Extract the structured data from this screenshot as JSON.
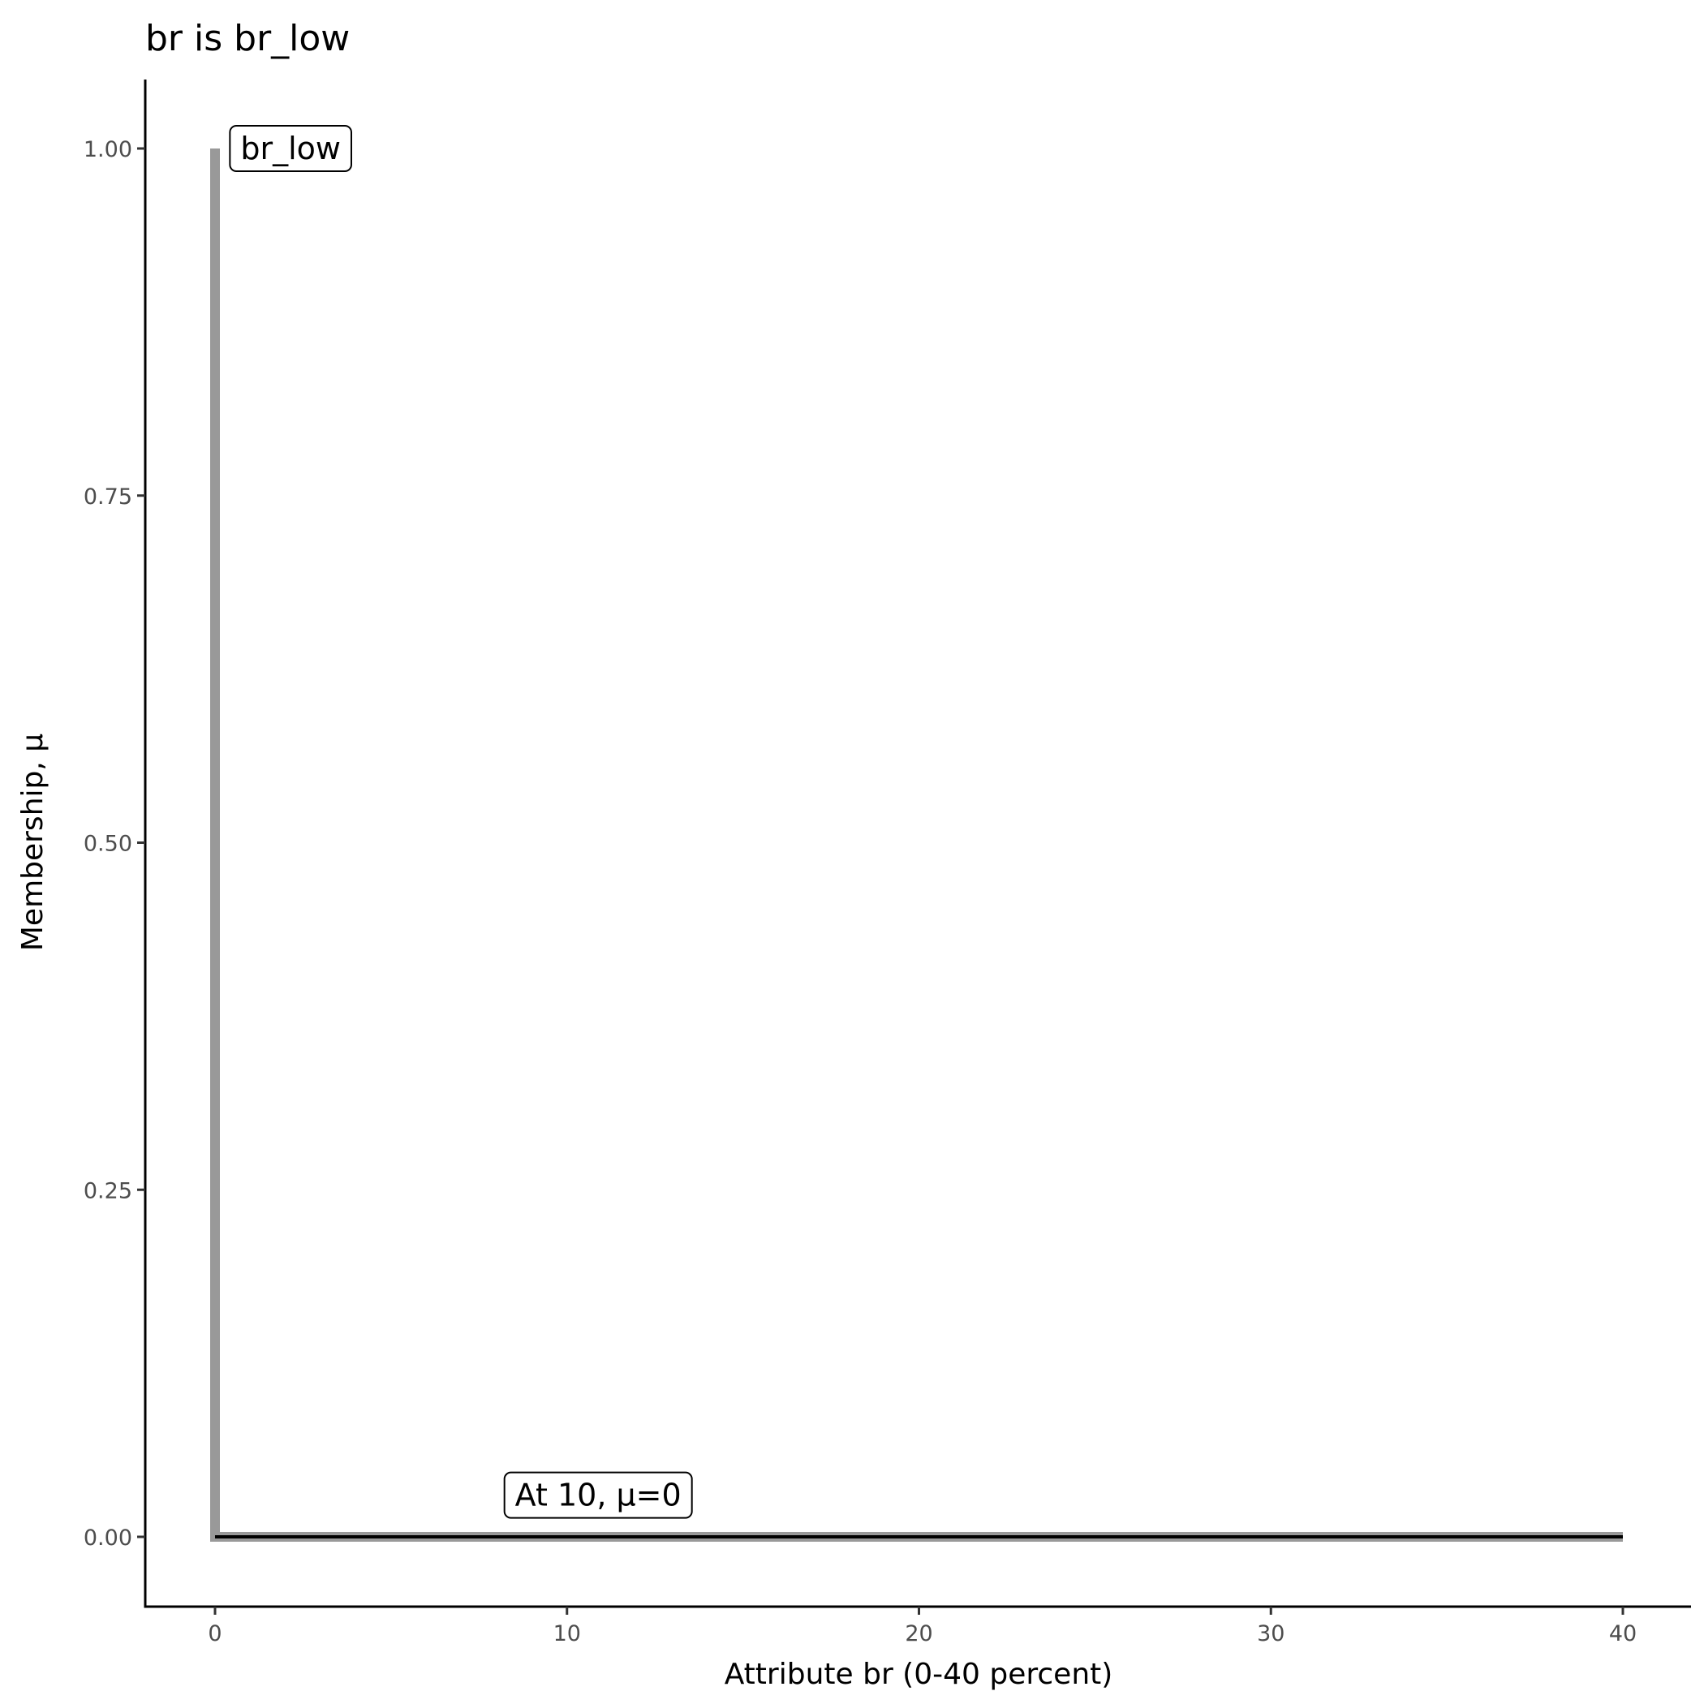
{
  "chart_data": {
    "type": "line",
    "title": "br is br_low",
    "xlabel": "Attribute br (0-40 percent)",
    "ylabel": "Membership, μ",
    "xlim": [
      -2,
      42
    ],
    "ylim": [
      -0.05,
      1.05
    ],
    "x_ticks": [
      0,
      10,
      20,
      30,
      40
    ],
    "x_tick_labels": [
      "0",
      "10",
      "20",
      "30",
      "40"
    ],
    "y_ticks": [
      0,
      0.25,
      0.5,
      0.75,
      1.0
    ],
    "y_tick_labels": [
      "0.00",
      "0.25",
      "0.50",
      "0.75",
      "1.00"
    ],
    "grid": false,
    "series": [
      {
        "color": "#999999",
        "x": [
          0,
          0,
          40
        ],
        "y": [
          1,
          0,
          0
        ]
      },
      {
        "color": "#000000",
        "x": [
          0,
          40
        ],
        "y": [
          0,
          0
        ]
      }
    ],
    "annotations": [
      {
        "text": "br_low",
        "x": 0.4,
        "y": 1.0
      },
      {
        "text": "At 10, μ=0",
        "x": 8.2,
        "y": 0.03
      }
    ]
  }
}
